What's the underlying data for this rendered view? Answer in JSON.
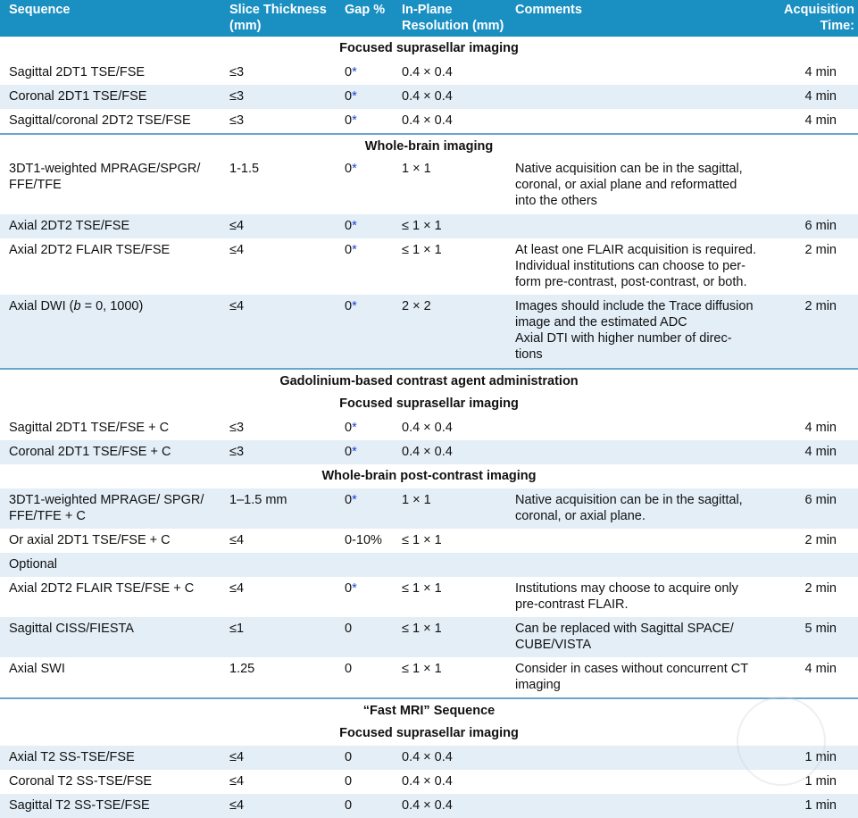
{
  "headers": {
    "sequence": "Sequence",
    "slice": [
      "Slice Thickness",
      "(mm)"
    ],
    "gap": "Gap %",
    "inplane": [
      "In-Plane",
      "Resolution (mm)"
    ],
    "comments": "Comments",
    "acq": [
      "Acquisition",
      "Time:"
    ]
  },
  "s1": "Focused suprasellar imaging",
  "r1": [
    "Sagittal 2DT1 TSE/FSE",
    "≤3",
    "0",
    "0.4 × 0.4",
    "",
    "4 min"
  ],
  "r2": [
    "Coronal 2DT1 TSE/FSE",
    "≤3",
    "0",
    "0.4 × 0.4",
    "",
    "4 min"
  ],
  "r3": [
    "Sagittal/coronal 2DT2 TSE/FSE",
    "≤3",
    "0",
    "0.4 × 0.4",
    "",
    "4 min"
  ],
  "s2": "Whole-brain imaging",
  "r4": [
    "3DT1-weighted MPRAGE/SPGR/",
    "FFE/TFE",
    "1-1.5",
    "0",
    "1 × 1",
    "Native acquisition can be in the sagittal,",
    "coronal, or axial plane and reformatted",
    "into the others",
    ""
  ],
  "r5": [
    "Axial 2DT2 TSE/FSE",
    "≤4",
    "0",
    "≤ 1 × 1",
    "",
    "6 min"
  ],
  "r6": [
    "Axial 2DT2 FLAIR TSE/FSE",
    "≤4",
    "0",
    "≤ 1 × 1",
    "At least one FLAIR acquisition is required.",
    "Individual institutions can choose to per-",
    "form pre-contrast, post-contrast, or both.",
    "2 min"
  ],
  "r7": [
    "Axial DWI (",
    "b",
    " = 0, 1000)",
    "≤4",
    "0",
    "2 × 2",
    "Images should include the Trace diffusion",
    "image and the estimated ADC",
    "Axial DTI with higher number of direc-",
    "tions",
    "2 min"
  ],
  "s3": "Gadolinium-based contrast agent administration",
  "s4": "Focused suprasellar imaging",
  "r8": [
    "Sagittal 2DT1 TSE/FSE + C",
    "≤3",
    "0",
    "0.4 × 0.4",
    "",
    "4 min"
  ],
  "r9": [
    "Coronal 2DT1 TSE/FSE + C",
    "≤3",
    "0",
    "0.4 × 0.4",
    "",
    "4 min"
  ],
  "s5": "Whole-brain post-contrast imaging",
  "r10": [
    "3DT1-weighted MPRAGE/ SPGR/",
    "FFE/TFE + C",
    "1–1.5 mm",
    "0",
    "1 × 1",
    "Native acquisition can be in the sagittal,",
    "coronal, or axial plane.",
    "6 min"
  ],
  "r11": [
    "Or axial 2DT1 TSE/FSE + C",
    "≤4",
    "0-10%",
    "≤ 1 × 1",
    "",
    "2 min"
  ],
  "r12": [
    "Optional"
  ],
  "r13": [
    "Axial 2DT2 FLAIR TSE/FSE + C",
    "≤4",
    "0",
    "≤ 1 × 1",
    "Institutions may choose to acquire only",
    "pre-contrast FLAIR.",
    "2 min"
  ],
  "r14": [
    "Sagittal CISS/FIESTA",
    "≤1",
    "0",
    "≤ 1 × 1",
    "Can be replaced with Sagittal SPACE/",
    "CUBE/VISTA",
    "5 min"
  ],
  "r15": [
    "Axial SWI",
    "1.25",
    "0",
    "≤ 1 × 1",
    "Consider in cases without concurrent CT",
    "imaging",
    "4 min"
  ],
  "s6": "“Fast MRI” Sequence",
  "s7": "Focused suprasellar imaging",
  "r16": [
    "Axial T2 SS-TSE/FSE",
    "≤4",
    "0",
    "0.4 × 0.4",
    "",
    "1 min"
  ],
  "r17": [
    "Coronal T2 SS-TSE/FSE",
    "≤4",
    "0",
    "0.4 × 0.4",
    "",
    "1 min"
  ],
  "r18": [
    "Sagittal T2 SS-TSE/FSE",
    "≤4",
    "0",
    "0.4 × 0.4",
    "",
    "1 min"
  ],
  "star": "*"
}
